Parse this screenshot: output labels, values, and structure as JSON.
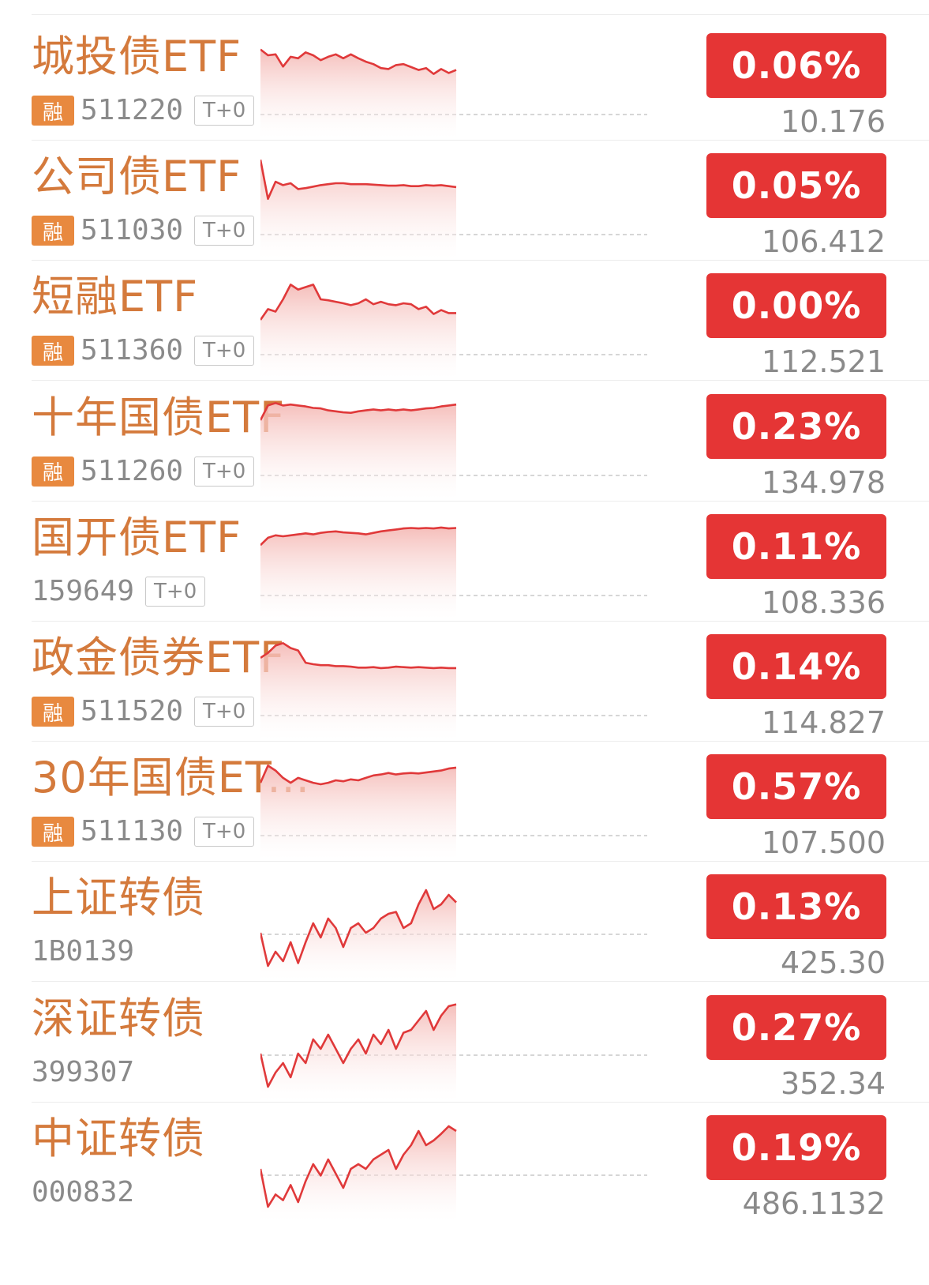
{
  "colors": {
    "name": "#d47a3c",
    "badge": "#e53535",
    "line": "#e0393a",
    "tag": "#e8893f",
    "muted": "#8a8a8a"
  },
  "rong_label": "融",
  "t0_label": "T+0",
  "rows": [
    {
      "name": "城投债ETF",
      "code": "511220",
      "rong": true,
      "t0": true,
      "change": "0.06%",
      "price": "10.176",
      "series": [
        0.3,
        0.42,
        0.4,
        0.65,
        0.45,
        0.48,
        0.36,
        0.42,
        0.52,
        0.45,
        0.4,
        0.48,
        0.4,
        0.48,
        0.55,
        0.6,
        0.68,
        0.7,
        0.62,
        0.6,
        0.66,
        0.72,
        0.68,
        0.8,
        0.7,
        0.78,
        0.72
      ]
    },
    {
      "name": "公司债ETF",
      "code": "511030",
      "rong": true,
      "t0": true,
      "change": "0.05%",
      "price": "106.412",
      "series": [
        0.1,
        0.9,
        0.55,
        0.62,
        0.58,
        0.7,
        0.68,
        0.65,
        0.62,
        0.6,
        0.58,
        0.58,
        0.6,
        0.6,
        0.6,
        0.61,
        0.62,
        0.63,
        0.63,
        0.62,
        0.64,
        0.64,
        0.62,
        0.63,
        0.62,
        0.64,
        0.66
      ]
    },
    {
      "name": "短融ETF",
      "code": "511360",
      "rong": true,
      "t0": true,
      "change": "0.00%",
      "price": "112.521",
      "series": [
        0.92,
        0.7,
        0.75,
        0.5,
        0.2,
        0.3,
        0.25,
        0.2,
        0.5,
        0.52,
        0.55,
        0.58,
        0.62,
        0.58,
        0.5,
        0.6,
        0.55,
        0.6,
        0.62,
        0.58,
        0.6,
        0.7,
        0.65,
        0.8,
        0.72,
        0.78,
        0.78
      ]
    },
    {
      "name": "十年国债ETF",
      "code": "511260",
      "rong": true,
      "t0": true,
      "change": "0.23%",
      "price": "134.978",
      "series": [
        0.5,
        0.2,
        0.15,
        0.2,
        0.18,
        0.2,
        0.22,
        0.25,
        0.26,
        0.3,
        0.32,
        0.34,
        0.35,
        0.32,
        0.3,
        0.28,
        0.3,
        0.28,
        0.3,
        0.28,
        0.3,
        0.28,
        0.26,
        0.25,
        0.22,
        0.2,
        0.18
      ]
    },
    {
      "name": "国开债ETF",
      "code": "159649",
      "rong": false,
      "t0": true,
      "change": "0.11%",
      "price": "108.336",
      "series": [
        0.6,
        0.45,
        0.4,
        0.42,
        0.4,
        0.38,
        0.36,
        0.38,
        0.35,
        0.33,
        0.32,
        0.34,
        0.35,
        0.36,
        0.38,
        0.35,
        0.32,
        0.3,
        0.28,
        0.26,
        0.25,
        0.26,
        0.25,
        0.26,
        0.24,
        0.26,
        0.25
      ]
    },
    {
      "name": "政金债券ETF",
      "code": "511520",
      "rong": true,
      "t0": true,
      "change": "0.14%",
      "price": "114.827",
      "series": [
        0.45,
        0.35,
        0.2,
        0.15,
        0.25,
        0.3,
        0.55,
        0.58,
        0.6,
        0.6,
        0.62,
        0.62,
        0.63,
        0.65,
        0.65,
        0.64,
        0.66,
        0.65,
        0.63,
        0.64,
        0.65,
        0.64,
        0.65,
        0.66,
        0.65,
        0.66,
        0.66
      ]
    },
    {
      "name": "30年国债ET...",
      "code": "511130",
      "rong": true,
      "t0": true,
      "change": "0.57%",
      "price": "107.500",
      "series": [
        0.55,
        0.2,
        0.3,
        0.45,
        0.55,
        0.45,
        0.5,
        0.55,
        0.58,
        0.55,
        0.5,
        0.52,
        0.48,
        0.5,
        0.45,
        0.4,
        0.38,
        0.35,
        0.38,
        0.36,
        0.35,
        0.36,
        0.34,
        0.32,
        0.3,
        0.26,
        0.24
      ]
    },
    {
      "name": "上证转债",
      "code": "1B0139",
      "rong": false,
      "t0": false,
      "change": "0.13%",
      "price": "425.30",
      "series": [
        0.6,
        0.95,
        0.8,
        0.9,
        0.7,
        0.92,
        0.7,
        0.5,
        0.65,
        0.45,
        0.55,
        0.75,
        0.55,
        0.5,
        0.6,
        0.55,
        0.45,
        0.4,
        0.38,
        0.55,
        0.5,
        0.3,
        0.15,
        0.35,
        0.3,
        0.2,
        0.28
      ]
    },
    {
      "name": "深证转债",
      "code": "399307",
      "rong": false,
      "t0": false,
      "change": "0.27%",
      "price": "352.34",
      "series": [
        0.6,
        0.95,
        0.8,
        0.7,
        0.85,
        0.6,
        0.7,
        0.45,
        0.55,
        0.4,
        0.55,
        0.7,
        0.55,
        0.45,
        0.6,
        0.4,
        0.5,
        0.35,
        0.55,
        0.38,
        0.35,
        0.25,
        0.15,
        0.35,
        0.2,
        0.1,
        0.08
      ]
    },
    {
      "name": "中证转债",
      "code": "000832",
      "rong": false,
      "t0": false,
      "change": "0.19%",
      "price": "486.1132",
      "series": [
        0.55,
        0.95,
        0.82,
        0.88,
        0.72,
        0.9,
        0.68,
        0.5,
        0.62,
        0.45,
        0.6,
        0.75,
        0.55,
        0.5,
        0.55,
        0.45,
        0.4,
        0.35,
        0.55,
        0.4,
        0.3,
        0.15,
        0.3,
        0.25,
        0.18,
        0.1,
        0.15
      ]
    }
  ]
}
